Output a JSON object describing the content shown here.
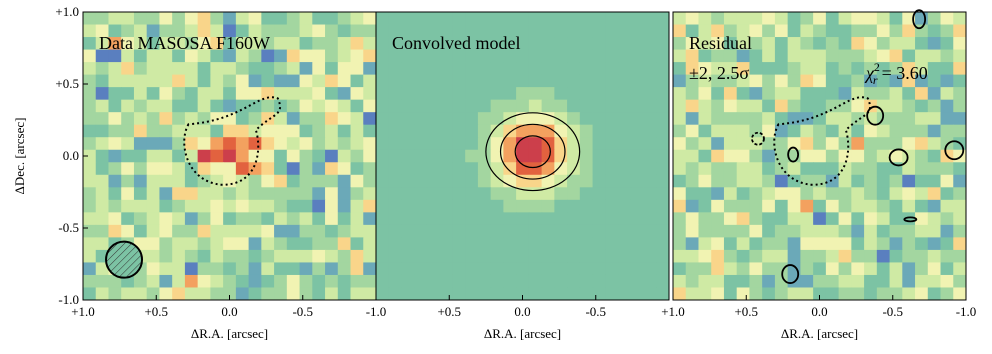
{
  "chart_data": [
    {
      "type": "image",
      "title": "Data MASOSA F160W",
      "xlabel": "ΔR.A. [arcsec]",
      "ylabel": "ΔDec. [arcsec]",
      "xlim": [
        1,
        -1
      ],
      "ylim": [
        -1,
        1
      ],
      "xticks": [
        {
          "value": 1,
          "label": "+1.0"
        },
        {
          "value": 0.5,
          "label": "+0.5"
        },
        {
          "value": 0,
          "label": "0.0"
        },
        {
          "value": -0.5,
          "label": "-0.5"
        },
        {
          "value": -1,
          "label": "-1.0"
        }
      ],
      "yticks": [
        {
          "value": 1,
          "label": "+1.0"
        },
        {
          "value": 0.5,
          "label": "+0.5"
        },
        {
          "value": 0,
          "label": "0.0"
        },
        {
          "value": -0.5,
          "label": "-0.5"
        },
        {
          "value": -1,
          "label": "-1.0"
        }
      ]
    },
    {
      "type": "image",
      "title": "Convolved model",
      "xlabel": "ΔR.A. [arcsec]",
      "xlim": [
        1,
        -1
      ],
      "ylim": [
        -1,
        1
      ],
      "xticks": [
        {
          "value": 0.5,
          "label": "+0.5"
        },
        {
          "value": 0,
          "label": "0.0"
        },
        {
          "value": -0.5,
          "label": "-0.5"
        }
      ]
    },
    {
      "type": "image",
      "title": "Residual",
      "subtitle": "±2, 2.5σ",
      "xlabel": "ΔR.A. [arcsec]",
      "annotation": {
        "symbol": "χ",
        "sup": "2",
        "sub": "r",
        "rest": "= 3.60"
      },
      "xlim": [
        1,
        -1
      ],
      "ylim": [
        -1,
        1
      ],
      "xticks": [
        {
          "value": 1,
          "label": "+1.0"
        },
        {
          "value": 0.5,
          "label": "+0.5"
        },
        {
          "value": 0,
          "label": "0.0"
        },
        {
          "value": -0.5,
          "label": "-0.5"
        },
        {
          "value": -1,
          "label": "-1.0"
        }
      ]
    }
  ]
}
